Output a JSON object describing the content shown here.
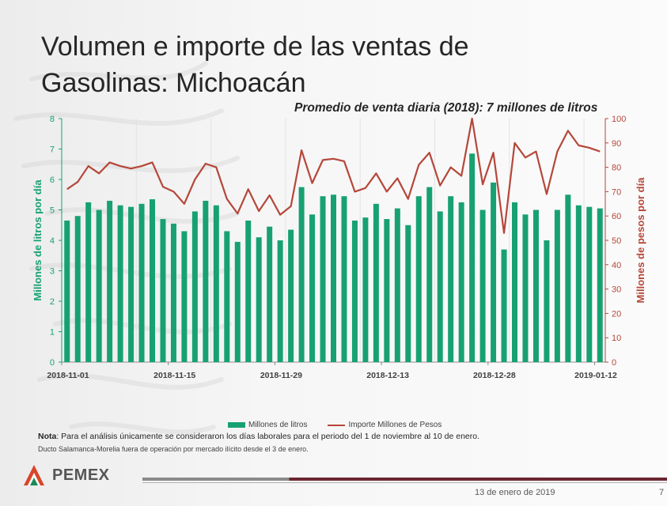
{
  "slide": {
    "title_line1": "Volumen e importe de las ventas de",
    "title_line2": "Gasolinas: Michoacán",
    "note_label": "Nota",
    "note_text": ": Para el análisis únicamente se consideraron los días laborales para el periodo del 1 de noviembre al 10 de enero.",
    "note2": "Ducto Salamanca-Morelia fuera de operación por mercado ilícito desde el 3 de enero.",
    "logo_text": "PEMEX",
    "footer_date": "13 de enero de 2019",
    "page_number": "7"
  },
  "chart_data": {
    "type": "bar",
    "title": "",
    "subtitle": "Promedio de venta diaria (2018): 7 millones de litros",
    "ylabel": "Millones de litros por día",
    "y2label": "Millones de pesos por día",
    "ylim": [
      0,
      8
    ],
    "yticks": [
      0,
      1,
      2,
      3,
      4,
      5,
      6,
      7,
      8
    ],
    "y2lim": [
      0,
      100
    ],
    "y2ticks": [
      0,
      10,
      20,
      30,
      40,
      50,
      60,
      70,
      80,
      90,
      100
    ],
    "x_tick_labels": [
      "2018-11-01",
      "2018-11-15",
      "2018-11-29",
      "2018-12-13",
      "2018-12-28",
      "2019-01-12"
    ],
    "legend": [
      "Millones de litros",
      "Importe Millones de Pesos"
    ],
    "legend_position": "bottom",
    "colors": {
      "bars": "#17a173",
      "line": "#b5473a",
      "axis_left": "#17a173",
      "axis_right": "#b5473a"
    },
    "series": [
      {
        "name": "Millones de litros",
        "type": "bar",
        "axis": "left",
        "values": [
          4.65,
          4.8,
          5.25,
          5.0,
          5.3,
          5.15,
          5.1,
          5.2,
          5.35,
          4.7,
          4.55,
          4.3,
          4.95,
          5.3,
          5.15,
          4.3,
          3.95,
          4.65,
          4.1,
          4.45,
          4.0,
          4.35,
          5.75,
          4.85,
          5.45,
          5.5,
          5.45,
          4.65,
          4.75,
          5.2,
          4.7,
          5.05,
          4.5,
          5.45,
          5.75,
          4.95,
          5.45,
          5.25,
          6.85,
          5.0,
          5.9,
          3.7,
          5.25,
          4.85,
          5.0,
          4.0,
          5.0,
          5.5,
          5.15,
          5.1,
          5.05
        ]
      },
      {
        "name": "Importe Millones de Pesos",
        "type": "line",
        "axis": "right",
        "values": [
          71,
          74,
          80.5,
          77.5,
          82,
          80.5,
          79.5,
          80.5,
          82,
          72,
          70,
          65,
          75,
          81.5,
          80,
          67,
          61,
          71,
          62,
          68.5,
          60.5,
          64,
          87,
          73.5,
          83,
          83.5,
          82.5,
          70,
          71.5,
          77.5,
          70,
          75.5,
          67,
          81,
          86,
          72.5,
          80,
          76.5,
          100,
          73,
          86,
          53,
          90,
          84,
          86.5,
          69,
          86.5,
          95,
          89,
          88,
          86.5
        ]
      }
    ]
  }
}
